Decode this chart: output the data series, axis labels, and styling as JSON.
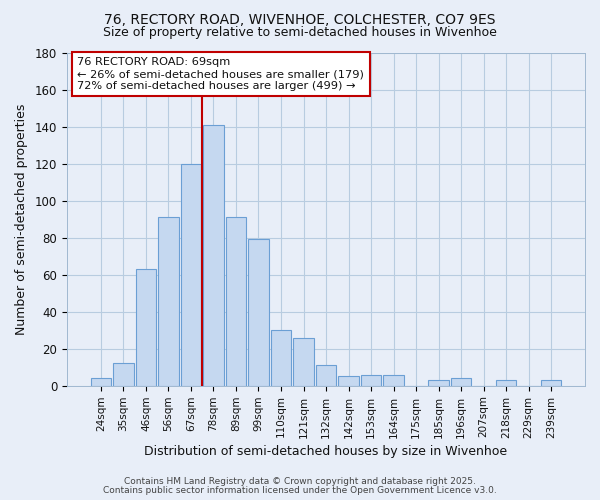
{
  "title1": "76, RECTORY ROAD, WIVENHOE, COLCHESTER, CO7 9ES",
  "title2": "Size of property relative to semi-detached houses in Wivenhoe",
  "xlabel": "Distribution of semi-detached houses by size in Wivenhoe",
  "ylabel": "Number of semi-detached properties",
  "categories": [
    "24sqm",
    "35sqm",
    "46sqm",
    "56sqm",
    "67sqm",
    "78sqm",
    "89sqm",
    "99sqm",
    "110sqm",
    "121sqm",
    "132sqm",
    "142sqm",
    "153sqm",
    "164sqm",
    "175sqm",
    "185sqm",
    "196sqm",
    "207sqm",
    "218sqm",
    "229sqm",
    "239sqm"
  ],
  "values": [
    4,
    12,
    63,
    91,
    120,
    141,
    91,
    79,
    30,
    26,
    11,
    5,
    6,
    6,
    0,
    3,
    4,
    0,
    3,
    0,
    3
  ],
  "bar_color": "#c5d8f0",
  "bar_edge_color": "#6b9fd4",
  "background_color": "#e8eef8",
  "grid_color": "#b8cce0",
  "vline_x": 4.5,
  "vline_color": "#c00000",
  "annotation_title": "76 RECTORY ROAD: 69sqm",
  "annotation_line1": "← 26% of semi-detached houses are smaller (179)",
  "annotation_line2": "72% of semi-detached houses are larger (499) →",
  "annotation_box_color": "white",
  "annotation_box_edge": "#c00000",
  "ylim": [
    0,
    180
  ],
  "yticks": [
    0,
    20,
    40,
    60,
    80,
    100,
    120,
    140,
    160,
    180
  ],
  "footnote1": "Contains HM Land Registry data © Crown copyright and database right 2025.",
  "footnote2": "Contains public sector information licensed under the Open Government Licence v3.0."
}
